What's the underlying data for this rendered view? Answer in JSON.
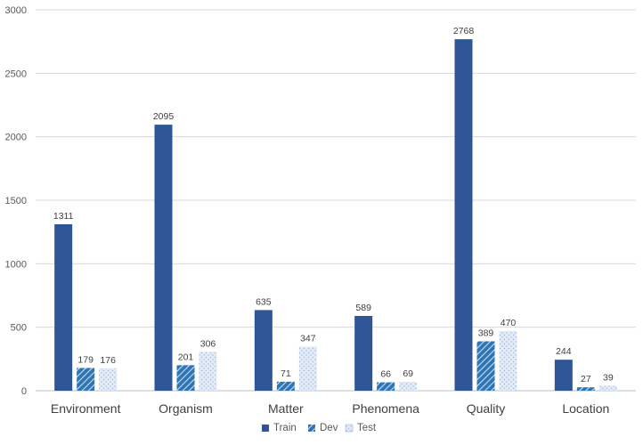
{
  "chart_data": {
    "type": "bar",
    "title": "",
    "xlabel": "",
    "ylabel": "",
    "categories": [
      "Environment",
      "Organism",
      "Matter",
      "Phenomena",
      "Quality",
      "Location"
    ],
    "series": [
      {
        "name": "Train",
        "values": [
          1311,
          2095,
          635,
          589,
          2768,
          244
        ],
        "color": "#2f5597",
        "pattern": "solid"
      },
      {
        "name": "Dev",
        "values": [
          179,
          201,
          71,
          66,
          389,
          27
        ],
        "color": "#2e75b6",
        "pattern": "diagonal-stripes"
      },
      {
        "name": "Test",
        "values": [
          176,
          306,
          347,
          69,
          470,
          39
        ],
        "color": "#dae3f3",
        "pattern": "dots"
      }
    ],
    "ylim": [
      0,
      3000
    ],
    "yticks": [
      0,
      500,
      1000,
      1500,
      2000,
      2500,
      3000
    ],
    "grid": true,
    "legend_position": "bottom-center"
  }
}
